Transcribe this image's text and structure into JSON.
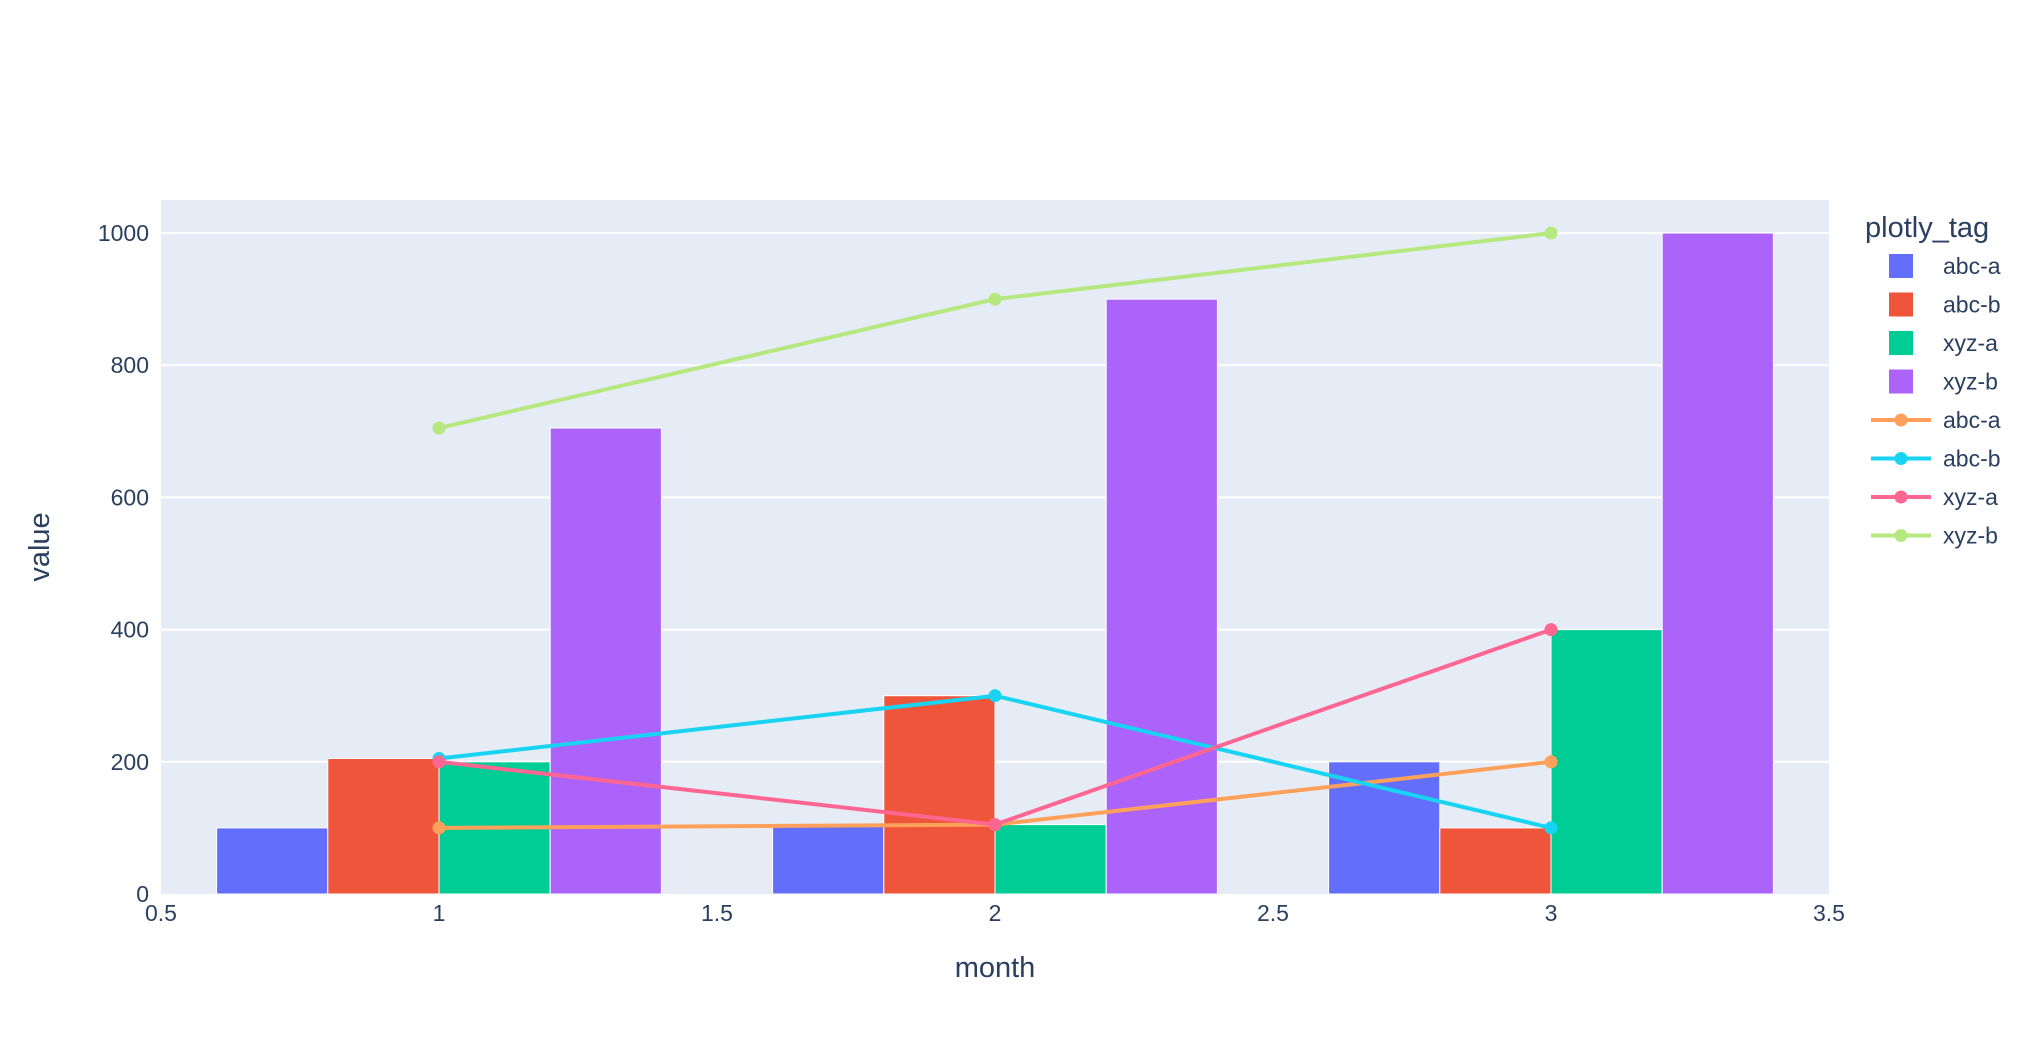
{
  "chart_data": {
    "type": "bar",
    "xlabel": "month",
    "ylabel": "value",
    "xlim": [
      0.5,
      3.5
    ],
    "ylim": [
      0,
      1050
    ],
    "x_ticks": [
      {
        "value": 0.5,
        "label": "0.5"
      },
      {
        "value": 1,
        "label": "1"
      },
      {
        "value": 1.5,
        "label": "1.5"
      },
      {
        "value": 2,
        "label": "2"
      },
      {
        "value": 2.5,
        "label": "2.5"
      },
      {
        "value": 3,
        "label": "3"
      },
      {
        "value": 3.5,
        "label": "3.5"
      }
    ],
    "y_ticks": [
      {
        "value": 0,
        "label": "0"
      },
      {
        "value": 200,
        "label": "200"
      },
      {
        "value": 400,
        "label": "400"
      },
      {
        "value": 600,
        "label": "600"
      },
      {
        "value": 800,
        "label": "800"
      },
      {
        "value": 1000,
        "label": "1000"
      }
    ],
    "grid": true,
    "plot_bg": "#e5ecf6",
    "x": [
      1,
      2,
      3
    ],
    "bar_series": [
      {
        "name": "abc-a",
        "color": "#636efa",
        "values": [
          100,
          105,
          200
        ]
      },
      {
        "name": "abc-b",
        "color": "#EF553B",
        "values": [
          205,
          300,
          100
        ]
      },
      {
        "name": "xyz-a",
        "color": "#00cc96",
        "values": [
          200,
          105,
          400
        ]
      },
      {
        "name": "xyz-b",
        "color": "#ab63fa",
        "values": [
          705,
          900,
          1000
        ]
      }
    ],
    "line_series": [
      {
        "name": "abc-a",
        "color": "#FFA15A",
        "values": [
          100,
          105,
          200
        ]
      },
      {
        "name": "abc-b",
        "color": "#19d3f3",
        "values": [
          205,
          300,
          100
        ]
      },
      {
        "name": "xyz-a",
        "color": "#FF6692",
        "values": [
          200,
          105,
          400
        ]
      },
      {
        "name": "xyz-b",
        "color": "#B6E880",
        "values": [
          705,
          900,
          1000
        ]
      }
    ],
    "legend": {
      "title": "plotly_tag",
      "position": "top-right"
    }
  }
}
